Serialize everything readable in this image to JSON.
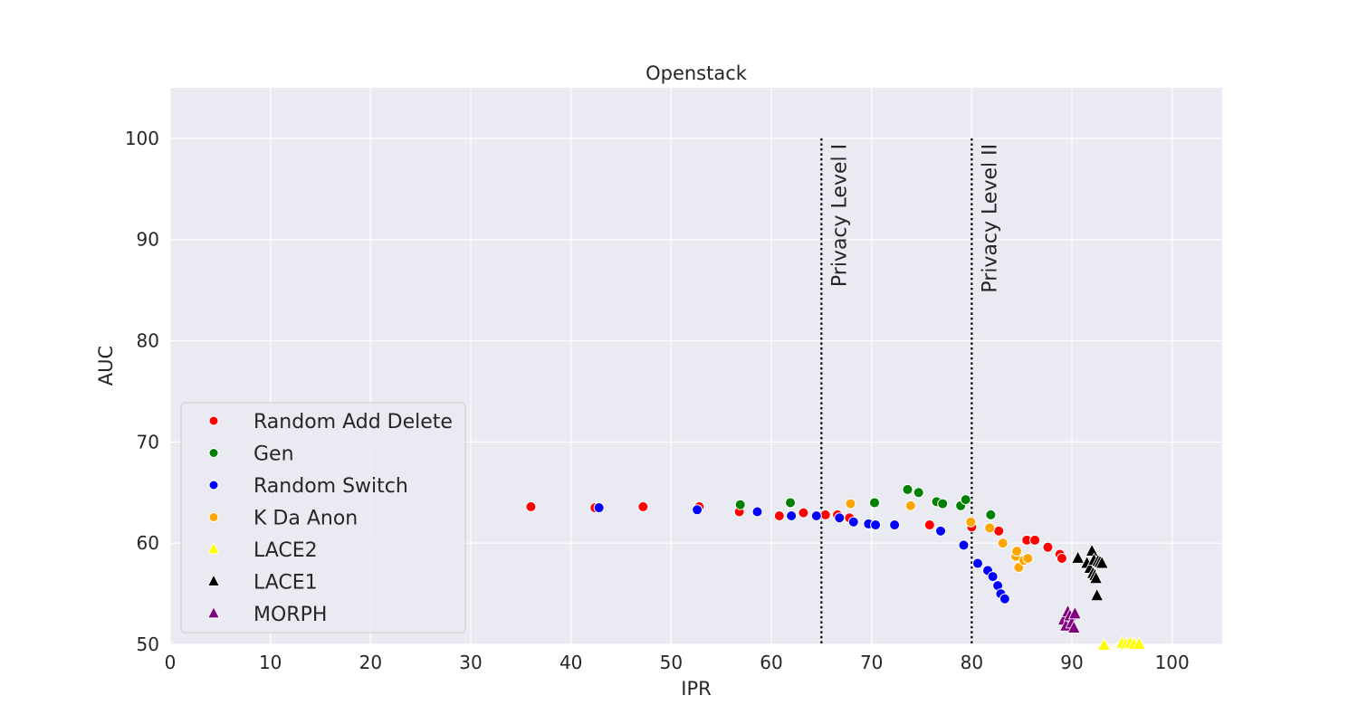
{
  "chart_data": {
    "type": "scatter",
    "title": "Openstack",
    "xlabel": "IPR",
    "ylabel": "AUC",
    "xlim": [
      0,
      105
    ],
    "ylim": [
      50,
      105
    ],
    "xticks": [
      0,
      10,
      20,
      30,
      40,
      50,
      60,
      70,
      80,
      90,
      100
    ],
    "yticks": [
      50,
      60,
      70,
      80,
      90,
      100
    ],
    "grid": true,
    "legend_position": "lower-left",
    "background": "#eaeaf2",
    "reference_lines": [
      {
        "x": 65,
        "y_from": 50,
        "y_to": 100,
        "label": "Privacy Level I"
      },
      {
        "x": 80,
        "y_from": 50,
        "y_to": 100,
        "label": "Privacy Level II"
      }
    ],
    "series": [
      {
        "name": "Random Add Delete",
        "color": "#ff0000",
        "marker": "circle",
        "points": [
          [
            36.0,
            63.6
          ],
          [
            42.4,
            63.5
          ],
          [
            47.2,
            63.6
          ],
          [
            52.8,
            63.6
          ],
          [
            56.8,
            63.1
          ],
          [
            60.8,
            62.7
          ],
          [
            63.2,
            63.0
          ],
          [
            65.4,
            62.8
          ],
          [
            66.6,
            62.8
          ],
          [
            67.8,
            62.5
          ],
          [
            75.8,
            61.8
          ],
          [
            80.0,
            61.6
          ],
          [
            82.7,
            61.2
          ],
          [
            85.5,
            60.3
          ],
          [
            86.3,
            60.3
          ],
          [
            87.6,
            59.6
          ],
          [
            88.8,
            58.9
          ],
          [
            89.0,
            58.5
          ]
        ]
      },
      {
        "name": "Gen",
        "color": "#008000",
        "marker": "circle",
        "points": [
          [
            56.9,
            63.8
          ],
          [
            61.9,
            64.0
          ],
          [
            70.3,
            64.0
          ],
          [
            73.6,
            65.3
          ],
          [
            74.7,
            65.0
          ],
          [
            76.5,
            64.1
          ],
          [
            77.1,
            63.9
          ],
          [
            78.9,
            63.7
          ],
          [
            79.4,
            64.3
          ],
          [
            81.9,
            62.8
          ]
        ]
      },
      {
        "name": "Random Switch",
        "color": "#0000ff",
        "marker": "circle",
        "points": [
          [
            42.8,
            63.5
          ],
          [
            52.6,
            63.3
          ],
          [
            58.6,
            63.1
          ],
          [
            62.0,
            62.7
          ],
          [
            64.5,
            62.7
          ],
          [
            66.8,
            62.5
          ],
          [
            68.2,
            62.1
          ],
          [
            69.7,
            61.9
          ],
          [
            70.4,
            61.8
          ],
          [
            72.3,
            61.8
          ],
          [
            76.9,
            61.2
          ],
          [
            79.2,
            59.8
          ],
          [
            80.6,
            58.0
          ],
          [
            81.6,
            57.3
          ],
          [
            82.1,
            56.7
          ],
          [
            82.6,
            55.8
          ],
          [
            82.9,
            55.0
          ],
          [
            83.3,
            54.5
          ]
        ]
      },
      {
        "name": "K Da Anon",
        "color": "#ffa500",
        "marker": "circle",
        "points": [
          [
            67.9,
            63.9
          ],
          [
            73.9,
            63.7
          ],
          [
            79.9,
            62.1
          ],
          [
            81.8,
            61.5
          ],
          [
            83.1,
            60.0
          ],
          [
            84.4,
            58.7
          ],
          [
            84.5,
            59.2
          ],
          [
            84.7,
            57.6
          ],
          [
            85.2,
            58.3
          ],
          [
            85.6,
            58.5
          ]
        ]
      },
      {
        "name": "LACE2",
        "color": "#ffff00",
        "marker": "triangle",
        "points": [
          [
            93.2,
            49.9
          ],
          [
            95.0,
            50.1
          ],
          [
            95.4,
            50.0
          ],
          [
            95.8,
            50.1
          ],
          [
            96.2,
            50.0
          ],
          [
            96.7,
            50.0
          ]
        ]
      },
      {
        "name": "LACE1",
        "color": "#000000",
        "marker": "triangle",
        "points": [
          [
            90.6,
            58.5
          ],
          [
            91.5,
            58.0
          ],
          [
            91.8,
            57.5
          ],
          [
            92.0,
            59.2
          ],
          [
            92.1,
            57.0
          ],
          [
            92.2,
            58.3
          ],
          [
            92.3,
            56.8
          ],
          [
            92.4,
            56.5
          ],
          [
            92.6,
            58.2
          ],
          [
            92.8,
            58.1
          ],
          [
            93.0,
            58.0
          ],
          [
            92.5,
            54.8
          ]
        ]
      },
      {
        "name": "MORPH",
        "color": "#800080",
        "marker": "triangle",
        "points": [
          [
            89.2,
            52.4
          ],
          [
            89.4,
            51.8
          ],
          [
            89.6,
            53.2
          ],
          [
            89.8,
            52.8
          ],
          [
            90.0,
            52.1
          ],
          [
            90.2,
            51.6
          ],
          [
            90.3,
            53.0
          ]
        ]
      }
    ]
  }
}
